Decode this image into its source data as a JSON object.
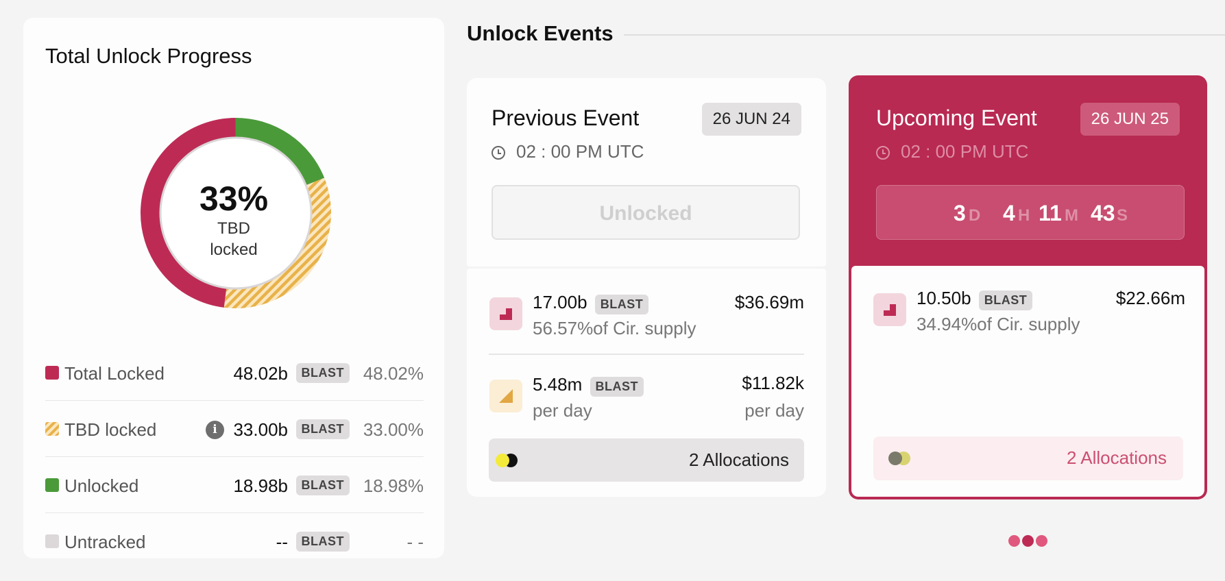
{
  "progress": {
    "title": "Total Unlock Progress",
    "center_pct": "33%",
    "center_line1": "TBD",
    "center_line2": "locked",
    "donut_fractions": {
      "total_locked": 0.4802,
      "tbd_locked": 0.33,
      "unlocked": 0.1898
    },
    "colors": {
      "total_locked": "#bd2b55",
      "tbd_locked": "#e8b24a",
      "unlocked": "#4a9a3a",
      "untracked": "#dcd8da"
    },
    "legend": [
      {
        "name": "Total Locked",
        "amount": "48.02b",
        "token": "BLAST",
        "pct": "48.02%"
      },
      {
        "name": "TBD locked",
        "amount": "33.00b",
        "token": "BLAST",
        "pct": "33.00%"
      },
      {
        "name": "Unlocked",
        "amount": "18.98b",
        "token": "BLAST",
        "pct": "18.98%"
      },
      {
        "name": "Untracked",
        "amount": "--",
        "token": "BLAST",
        "pct": "- -"
      }
    ]
  },
  "events": {
    "section_title": "Unlock Events",
    "previous": {
      "title": "Previous Event",
      "date": "26 JUN 24",
      "time": "02 : 00 PM UTC",
      "status_button": "Unlocked",
      "unlock": {
        "amount": "17.00b",
        "token": "BLAST",
        "supply": "56.57%of Cir. supply",
        "usd": "$36.69m"
      },
      "daily": {
        "amount": "5.48m",
        "token": "BLAST",
        "per_day": "per day",
        "usd": "$11.82k",
        "usd_per_day": "per day"
      },
      "allocations": "2 Allocations"
    },
    "upcoming": {
      "title": "Upcoming Event",
      "date": "26 JUN 25",
      "time": "02 : 00 PM UTC",
      "countdown": {
        "d": "3",
        "d_unit": "D",
        "h": "4",
        "h_unit": "H",
        "m": "11",
        "m_unit": "M",
        "s": "43",
        "s_unit": "S"
      },
      "unlock": {
        "amount": "10.50b",
        "token": "BLAST",
        "supply": "34.94%of Cir. supply",
        "usd": "$22.66m"
      },
      "allocations": "2 Allocations"
    }
  }
}
